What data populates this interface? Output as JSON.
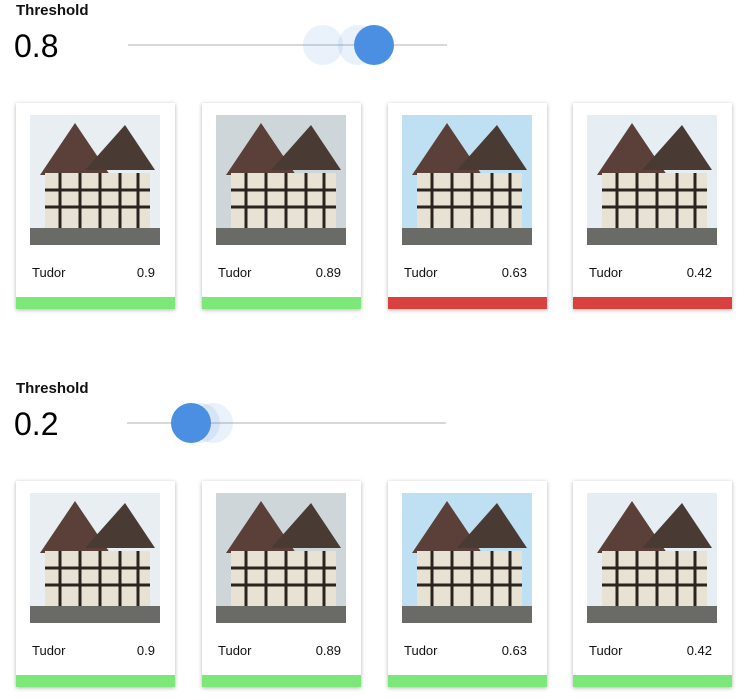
{
  "colors": {
    "accent": "#4a8fe2",
    "pass": "#7de87a",
    "fail": "#d9413f"
  },
  "panels": [
    {
      "threshold_label": "Threshold",
      "threshold_value": "0.8",
      "slider_value": 0.77,
      "cards": [
        {
          "label": "Tudor",
          "score": "0.9",
          "status": "pass"
        },
        {
          "label": "Tudor",
          "score": "0.89",
          "status": "pass"
        },
        {
          "label": "Tudor",
          "score": "0.63",
          "status": "fail"
        },
        {
          "label": "Tudor",
          "score": "0.42",
          "status": "fail"
        }
      ]
    },
    {
      "threshold_label": "Threshold",
      "threshold_value": "0.2",
      "slider_value": 0.2,
      "cards": [
        {
          "label": "Tudor",
          "score": "0.9",
          "status": "pass"
        },
        {
          "label": "Tudor",
          "score": "0.89",
          "status": "pass"
        },
        {
          "label": "Tudor",
          "score": "0.63",
          "status": "pass"
        },
        {
          "label": "Tudor",
          "score": "0.42",
          "status": "pass"
        }
      ]
    }
  ]
}
